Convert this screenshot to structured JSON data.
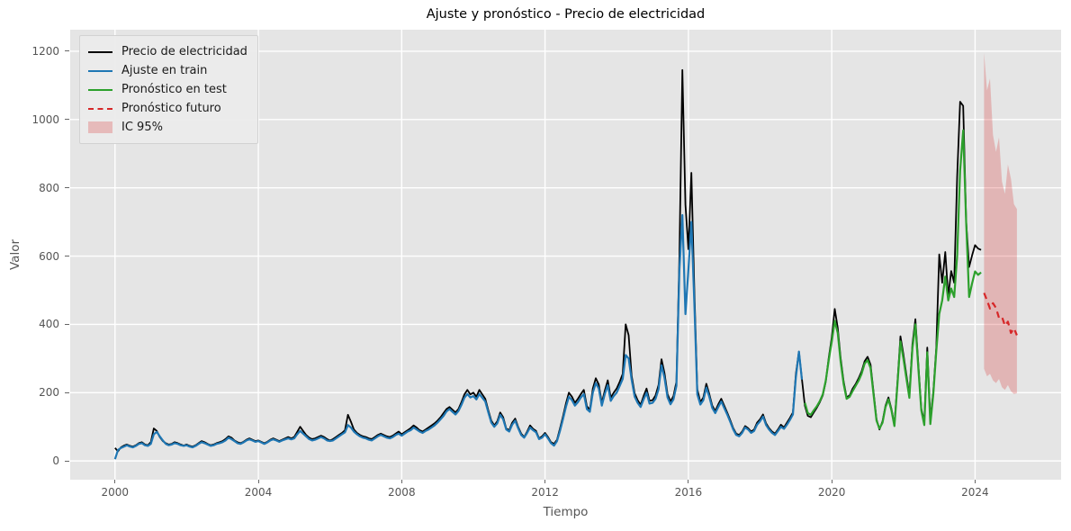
{
  "chart_data": {
    "type": "line",
    "title": "Ajuste y pronóstico - Precio de electricidad",
    "xlabel": "Tiempo",
    "ylabel": "Valor",
    "xlim": [
      1998.75,
      2026.4
    ],
    "ylim": [
      -55,
      1263
    ],
    "x_ticks": [
      2000,
      2004,
      2008,
      2012,
      2016,
      2020,
      2024
    ],
    "y_ticks": [
      0,
      200,
      400,
      600,
      800,
      1000,
      1200
    ],
    "grid": true,
    "grid_color": "#ffffff",
    "background": "#e5e5e5",
    "legend_position": "upper left",
    "series": [
      {
        "name": "Precio de electricidad",
        "id": "actual-price-line",
        "color": "#000000",
        "width": 1.8,
        "dash": null,
        "start": 2000.0,
        "step": 0.0833333,
        "values": [
          38,
          28,
          40,
          45,
          48,
          44,
          42,
          46,
          52,
          55,
          48,
          46,
          55,
          95,
          88,
          70,
          58,
          52,
          48,
          50,
          55,
          52,
          48,
          45,
          48,
          44,
          42,
          46,
          52,
          58,
          55,
          50,
          46,
          48,
          52,
          55,
          58,
          64,
          72,
          68,
          60,
          55,
          52,
          56,
          62,
          66,
          62,
          58,
          60,
          56,
          52,
          56,
          62,
          66,
          62,
          58,
          62,
          66,
          70,
          66,
          70,
          85,
          100,
          88,
          76,
          68,
          64,
          66,
          70,
          74,
          70,
          64,
          60,
          64,
          70,
          76,
          82,
          90,
          135,
          115,
          92,
          82,
          76,
          72,
          70,
          66,
          64,
          70,
          76,
          80,
          76,
          72,
          70,
          74,
          80,
          86,
          78,
          84,
          90,
          96,
          104,
          98,
          90,
          86,
          92,
          98,
          104,
          110,
          118,
          128,
          140,
          152,
          158,
          150,
          142,
          152,
          172,
          195,
          208,
          195,
          200,
          188,
          208,
          195,
          182,
          148,
          118,
          104,
          116,
          142,
          128,
          95,
          90,
          112,
          124,
          100,
          80,
          70,
          86,
          104,
          94,
          88,
          66,
          72,
          82,
          70,
          55,
          50,
          62,
          95,
          130,
          168,
          200,
          188,
          170,
          182,
          196,
          208,
          160,
          150,
          212,
          242,
          224,
          170,
          206,
          236,
          186,
          200,
          212,
          232,
          255,
          400,
          368,
          250,
          198,
          178,
          164,
          190,
          212,
          176,
          178,
          192,
          222,
          298,
          258,
          196,
          174,
          190,
          232,
          600,
          1145,
          750,
          620,
          844,
          500,
          210,
          172,
          186,
          226,
          196,
          162,
          146,
          166,
          182,
          162,
          142,
          120,
          96,
          80,
          76,
          86,
          102,
          96,
          86,
          92,
          112,
          122,
          136,
          110,
          96,
          86,
          80,
          92,
          106,
          98,
          112,
          126,
          142,
          255,
          320,
          240,
          162,
          132,
          128,
          142,
          156,
          172,
          192,
          232,
          302,
          362,
          445,
          390,
          300,
          232,
          186,
          192,
          212,
          225,
          242,
          262,
          292,
          305,
          282,
          202,
          122,
          92,
          116,
          162,
          186,
          152,
          106,
          232,
          365,
          312,
          252,
          192,
          342,
          415,
          282,
          152,
          116,
          332,
          122,
          202,
          332,
          605,
          522,
          612,
          482,
          556,
          522,
          832,
          1052,
          1040,
          702,
          568,
          602,
          632,
          622,
          618
        ]
      },
      {
        "name": "Ajuste en train",
        "id": "train-fit-line",
        "color": "#1f77b4",
        "width": 2.2,
        "dash": null,
        "start": 2000.0,
        "step": 0.0833333,
        "values": [
          5,
          32,
          38,
          42,
          46,
          42,
          40,
          44,
          50,
          52,
          46,
          44,
          50,
          78,
          85,
          72,
          60,
          50,
          46,
          48,
          52,
          50,
          46,
          44,
          46,
          42,
          40,
          44,
          50,
          55,
          52,
          48,
          44,
          46,
          50,
          52,
          55,
          60,
          68,
          64,
          58,
          52,
          50,
          54,
          60,
          63,
          60,
          56,
          58,
          54,
          50,
          54,
          60,
          63,
          60,
          56,
          60,
          63,
          66,
          63,
          66,
          78,
          88,
          80,
          72,
          64,
          60,
          62,
          66,
          70,
          66,
          60,
          58,
          60,
          66,
          72,
          78,
          84,
          105,
          98,
          86,
          78,
          72,
          68,
          66,
          62,
          60,
          66,
          72,
          76,
          72,
          68,
          66,
          70,
          76,
          80,
          74,
          80,
          86,
          90,
          98,
          92,
          86,
          82,
          88,
          92,
          98,
          104,
          112,
          122,
          132,
          145,
          152,
          144,
          136,
          146,
          164,
          185,
          196,
          186,
          190,
          180,
          196,
          185,
          174,
          142,
          112,
          100,
          110,
          135,
          122,
          92,
          86,
          106,
          118,
          96,
          76,
          68,
          82,
          98,
          90,
          84,
          64,
          68,
          78,
          66,
          52,
          45,
          58,
          88,
          122,
          158,
          188,
          178,
          162,
          172,
          186,
          196,
          152,
          144,
          200,
          228,
          212,
          162,
          196,
          222,
          176,
          190,
          200,
          220,
          240,
          310,
          300,
          238,
          188,
          170,
          158,
          180,
          200,
          168,
          170,
          182,
          210,
          280,
          244,
          186,
          166,
          180,
          220,
          560,
          720,
          430,
          560,
          700,
          460,
          195,
          165,
          178,
          215,
          188,
          155,
          140,
          158,
          174,
          155,
          136,
          115,
          92,
          76,
          72,
          82,
          98,
          92,
          82,
          88,
          106,
          116,
          130,
          105,
          92,
          82,
          76,
          88,
          100,
          94,
          106,
          120,
          136,
          245,
          320,
          238
        ]
      },
      {
        "name": "Pronóstico en test",
        "id": "test-forecast-line",
        "color": "#2ca02c",
        "width": 2.2,
        "dash": null,
        "start": 2019.25,
        "step": 0.0833333,
        "values": [
          170,
          140,
          135,
          148,
          160,
          175,
          195,
          235,
          295,
          350,
          410,
          375,
          290,
          225,
          182,
          188,
          205,
          220,
          235,
          255,
          285,
          295,
          272,
          195,
          118,
          95,
          112,
          158,
          180,
          148,
          102,
          225,
          350,
          300,
          242,
          185,
          330,
          400,
          270,
          148,
          105,
          318,
          108,
          195,
          320,
          430,
          470,
          540,
          470,
          505,
          480,
          600,
          850,
          968,
          700,
          480,
          520,
          555,
          545,
          552
        ]
      },
      {
        "name": "Pronóstico futuro",
        "id": "future-forecast-line",
        "color": "#d62728",
        "width": 2.2,
        "dash": "7 5",
        "start": 2024.25,
        "step": 0.0833333,
        "values": [
          492,
          470,
          446,
          462,
          448,
          419,
          422,
          396,
          408,
          375,
          388,
          368
        ]
      }
    ],
    "band": {
      "name": "IC 95%",
      "id": "confidence-band",
      "color": "rgba(214,39,40,0.25)",
      "start": 2024.25,
      "step": 0.0833333,
      "upper": [
        1195,
        1085,
        1120,
        955,
        905,
        948,
        818,
        782,
        868,
        826,
        752,
        738
      ],
      "lower": [
        270,
        248,
        255,
        236,
        228,
        240,
        216,
        208,
        222,
        204,
        196,
        198
      ]
    }
  }
}
